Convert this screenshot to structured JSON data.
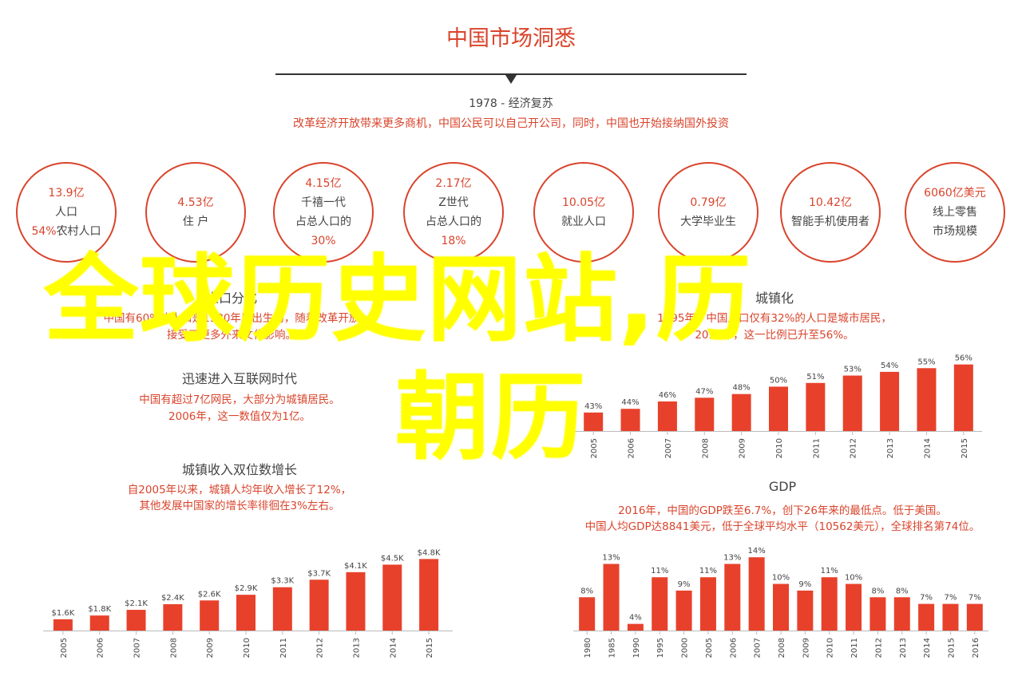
{
  "title": "中国市场洞悉",
  "era": "1978 - 经济复苏",
  "era_desc": "改革经济开放带来更多商机，中国公民可以自己开公司，同时，中国也开始接纳国外投资",
  "circles": [
    {
      "lines": [
        {
          "t": "13.9亿",
          "red": true
        },
        {
          "t": "人口",
          "red": false
        },
        {
          "t": "54%农村人口",
          "red": false,
          "prefix_red": "54%",
          "rest": "农村人口"
        }
      ]
    },
    {
      "lines": [
        {
          "t": "4.53亿",
          "red": true
        },
        {
          "t": "住 户",
          "red": false
        }
      ]
    },
    {
      "lines": [
        {
          "t": "4.15亿",
          "red": true
        },
        {
          "t": "千禧一代",
          "red": false
        },
        {
          "t": "占总人口的",
          "red": false
        },
        {
          "t": "30%",
          "red": true
        }
      ]
    },
    {
      "lines": [
        {
          "t": "2.17亿",
          "red": true
        },
        {
          "t": "Z世代",
          "red": false
        },
        {
          "t": "占总人口的",
          "red": false
        },
        {
          "t": "18%",
          "red": true
        }
      ]
    },
    {
      "lines": [
        {
          "t": "10.05亿",
          "red": true
        },
        {
          "t": "就业人口",
          "red": false
        }
      ]
    },
    {
      "lines": [
        {
          "t": "0.79亿",
          "red": true
        },
        {
          "t": "大学毕业生",
          "red": false
        }
      ]
    },
    {
      "lines": [
        {
          "t": "10.42亿",
          "red": true
        },
        {
          "t": "智能手机使用者",
          "red": false
        }
      ]
    },
    {
      "lines": [
        {
          "t": "6060亿美元",
          "red": true
        },
        {
          "t": "线上零售",
          "red": false
        },
        {
          "t": "市场规模",
          "red": false
        }
      ]
    }
  ],
  "sections": {
    "left_top_title": "人口分化",
    "left_top_desc1": "中国有60%的人口是1980年后出生的，随着改革开放",
    "left_top_desc2": "接受了更多外来文化影响。",
    "internet_title": "迅速进入互联网时代",
    "internet_desc1": "中国有超过7亿网民，大部分为城镇居民。",
    "internet_desc2": "2006年，这一数值仅为1亿。",
    "income_title": "城镇收入双位数增长",
    "income_desc1": "自2005年以来，城镇人均年收入增长了12%，",
    "income_desc2": "其他发展中国家的增长率徘徊在3%左右。",
    "urban_title": "城镇化",
    "urban_desc1": "1995年，中国人口仅有32%的人口是城市居民，",
    "urban_desc2": "2015年，这一比例已升至56%。",
    "gdp_title": "GDP",
    "gdp_desc1": "2016年，中国的GDP跌至6.7%，创下26年来的最低点。低于美国。",
    "gdp_desc2": "中国人均GDP达8841美元，低于全球平均水平（10562美元），全球排名第74位。"
  },
  "overlay": {
    "line1": "全球历史网站,历",
    "line2": "朝历"
  },
  "colors": {
    "accent": "#d9442c",
    "bar": "#e8412b",
    "overlay": "#ffff00"
  },
  "chart_data": [
    {
      "type": "bar",
      "title": "城镇化",
      "categories": [
        "2005",
        "2006",
        "2007",
        "2008",
        "2009",
        "2010",
        "2011",
        "2012",
        "2013",
        "2014",
        "2015"
      ],
      "values": [
        43,
        44,
        46,
        47,
        48,
        50,
        51,
        53,
        54,
        55,
        56
      ],
      "labels": [
        "43%",
        "44%",
        "46%",
        "47%",
        "48%",
        "50%",
        "51%",
        "53%",
        "54%",
        "55%",
        "56%"
      ],
      "ylim": [
        38,
        57
      ]
    },
    {
      "type": "bar",
      "title": "城镇收入双位数增长",
      "categories": [
        "2005",
        "2006",
        "2007",
        "2008",
        "2009",
        "2010",
        "2011",
        "2012",
        "2013",
        "2014",
        "2015"
      ],
      "values": [
        1.6,
        1.8,
        2.1,
        2.4,
        2.6,
        2.9,
        3.3,
        3.7,
        4.1,
        4.5,
        4.8
      ],
      "labels": [
        "$1.6K",
        "$1.8K",
        "$2.1K",
        "$2.4K",
        "$2.6K",
        "$2.9K",
        "$3.3K",
        "$3.7K",
        "$4.1K",
        "$4.5K",
        "$4.8K"
      ],
      "ylim": [
        1.0,
        4.9
      ]
    },
    {
      "type": "bar",
      "title": "GDP",
      "categories": [
        "1980",
        "1985",
        "1990",
        "1995",
        "2000",
        "2005",
        "2006",
        "2007",
        "2008",
        "2009",
        "2010",
        "2011",
        "2012",
        "2013",
        "2014",
        "2015",
        "2016"
      ],
      "values": [
        8,
        13,
        4,
        11,
        9,
        11,
        13,
        14,
        10,
        9,
        11,
        10,
        8,
        8,
        7,
        7,
        7
      ],
      "labels": [
        "8%",
        "13%",
        "4%",
        "11%",
        "9%",
        "11%",
        "13%",
        "14%",
        "10%",
        "9%",
        "11%",
        "10%",
        "8%",
        "8%",
        "7%",
        "7%",
        "7%"
      ],
      "ylim": [
        3,
        14.5
      ]
    }
  ]
}
